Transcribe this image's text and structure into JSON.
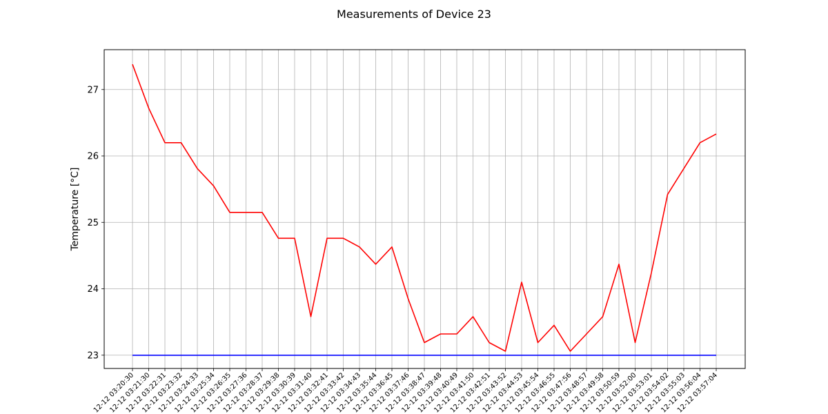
{
  "chart_data": {
    "type": "line",
    "title": "Measurements of Device 23",
    "xlabel": "",
    "ylabel": "Temperature [°C]",
    "ylim": [
      22.8,
      27.6
    ],
    "yticks": [
      "23",
      "24",
      "25",
      "26",
      "27"
    ],
    "grid": true,
    "x": [
      "12-12 03:20:30",
      "12-12 03:21:30",
      "12-12 03:22:31",
      "12-12 03:23:32",
      "12-12 03:24:33",
      "12-12 03:25:34",
      "12-12 03:26:35",
      "12-12 03:27:36",
      "12-12 03:28:37",
      "12-12 03:29:38",
      "12-12 03:30:39",
      "12-12 03:31:40",
      "12-12 03:32:41",
      "12-12 03:33:42",
      "12-12 03:34:43",
      "12-12 03:35:44",
      "12-12 03:36:45",
      "12-12 03:37:46",
      "12-12 03:38:47",
      "12-12 03:39:48",
      "12-12 03:40:49",
      "12-12 03:41:50",
      "12-12 03:42:51",
      "12-12 03:43:52",
      "12-12 03:44:53",
      "12-12 03:45:54",
      "12-12 03:46:55",
      "12-12 03:47:56",
      "12-12 03:48:57",
      "12-12 03:49:58",
      "12-12 03:50:59",
      "12-12 03:52:00",
      "12-12 03:53:01",
      "12-12 03:54:02",
      "12-12 03:55:03",
      "12-12 03:56:04",
      "12-12 03:57:04"
    ],
    "series": [
      {
        "color": "#ff0000",
        "values": [
          27.38,
          26.72,
          26.2,
          26.2,
          25.81,
          25.55,
          25.15,
          25.15,
          25.15,
          24.76,
          24.76,
          23.58,
          24.76,
          24.76,
          24.63,
          24.37,
          24.63,
          23.85,
          23.19,
          23.32,
          23.32,
          23.58,
          23.19,
          23.06,
          24.1,
          23.19,
          23.45,
          23.06,
          23.32,
          23.58,
          24.37,
          23.19,
          24.24,
          25.42,
          25.81,
          26.2,
          26.33
        ]
      },
      {
        "color": "#0000ff",
        "values": [
          23,
          23,
          23,
          23,
          23,
          23,
          23,
          23,
          23,
          23,
          23,
          23,
          23,
          23,
          23,
          23,
          23,
          23,
          23,
          23,
          23,
          23,
          23,
          23,
          23,
          23,
          23,
          23,
          23,
          23,
          23,
          23,
          23,
          23,
          23,
          23,
          23
        ]
      }
    ]
  }
}
